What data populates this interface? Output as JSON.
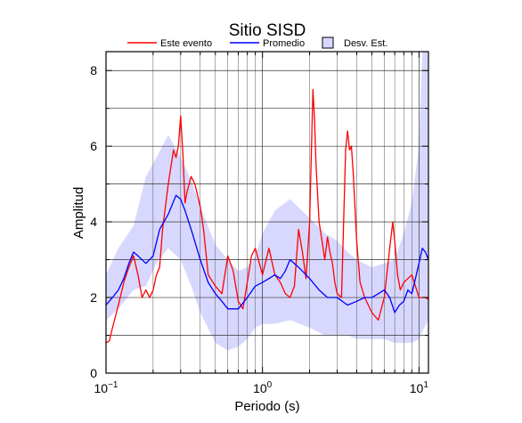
{
  "chart_data": {
    "type": "line",
    "title": "Sitio SISD",
    "xlabel": "Periodo (s)",
    "ylabel": "Amplitud",
    "xscale": "log",
    "xlim": [
      0.1,
      11.5
    ],
    "ylim": [
      0,
      8.5
    ],
    "x_ticks": [
      {
        "value": 0.1,
        "base": "10",
        "exp": "−1"
      },
      {
        "value": 1,
        "base": "10",
        "exp": "0"
      },
      {
        "value": 10,
        "base": "10",
        "exp": "1"
      }
    ],
    "y_ticks": [
      "0",
      "2",
      "4",
      "6",
      "8"
    ],
    "grid": true,
    "legend_position": "top",
    "legend": [
      {
        "label": "Este evento",
        "color": "#ff0000",
        "kind": "line"
      },
      {
        "label": "Promedio",
        "color": "#0000ff",
        "kind": "line"
      },
      {
        "label": "Desv. Est.",
        "color": "#d8d8ff",
        "kind": "box"
      }
    ],
    "band": {
      "name": "Desv. Est.",
      "color": "#d8d8ff",
      "x": [
        0.1,
        0.12,
        0.15,
        0.18,
        0.21,
        0.25,
        0.3,
        0.35,
        0.4,
        0.5,
        0.6,
        0.7,
        0.8,
        0.9,
        1.0,
        1.2,
        1.5,
        2.0,
        2.5,
        3.0,
        3.5,
        4.0,
        5.0,
        6.0,
        7.0,
        8.0,
        9.0,
        10.0,
        10.5,
        11.5
      ],
      "upper": [
        2.6,
        3.3,
        3.9,
        5.2,
        5.7,
        6.3,
        5.7,
        5.1,
        4.4,
        3.4,
        3.0,
        2.7,
        2.8,
        3.1,
        3.7,
        4.3,
        4.6,
        4.1,
        3.7,
        3.5,
        3.2,
        3.0,
        2.8,
        2.9,
        3.0,
        3.7,
        4.5,
        6.0,
        8.5,
        8.5
      ],
      "lower": [
        1.4,
        1.7,
        2.2,
        2.3,
        2.9,
        3.3,
        3.0,
        2.3,
        1.6,
        0.8,
        0.6,
        0.7,
        0.9,
        1.2,
        1.3,
        1.3,
        1.4,
        1.2,
        1.0,
        1.0,
        1.0,
        0.9,
        0.9,
        0.9,
        0.8,
        0.8,
        0.8,
        0.9,
        1.1,
        1.4
      ]
    },
    "series": [
      {
        "name": "Este evento",
        "color": "#ff0000",
        "x": [
          0.1,
          0.105,
          0.11,
          0.12,
          0.13,
          0.14,
          0.15,
          0.16,
          0.17,
          0.18,
          0.19,
          0.2,
          0.21,
          0.22,
          0.23,
          0.25,
          0.27,
          0.28,
          0.29,
          0.3,
          0.31,
          0.32,
          0.33,
          0.35,
          0.37,
          0.4,
          0.42,
          0.45,
          0.5,
          0.55,
          0.6,
          0.65,
          0.7,
          0.75,
          0.8,
          0.85,
          0.9,
          1.0,
          1.1,
          1.2,
          1.3,
          1.4,
          1.5,
          1.6,
          1.7,
          1.8,
          1.9,
          2.0,
          2.1,
          2.15,
          2.2,
          2.3,
          2.4,
          2.5,
          2.6,
          2.7,
          2.8,
          2.9,
          3.0,
          3.2,
          3.4,
          3.5,
          3.6,
          3.7,
          3.8,
          4.0,
          4.2,
          4.5,
          5.0,
          5.5,
          6.0,
          6.5,
          6.8,
          7.0,
          7.3,
          7.6,
          8.0,
          8.5,
          9.0,
          9.5,
          10.0,
          10.5,
          11.0,
          11.5
        ],
        "y": [
          0.8,
          0.85,
          1.2,
          1.8,
          2.4,
          2.8,
          3.1,
          2.6,
          2.0,
          2.2,
          2.0,
          2.2,
          2.6,
          2.8,
          3.8,
          5.0,
          5.9,
          5.7,
          6.0,
          6.8,
          5.8,
          4.5,
          4.8,
          5.2,
          5.0,
          4.4,
          3.8,
          2.6,
          2.3,
          2.1,
          3.1,
          2.7,
          1.9,
          1.7,
          2.4,
          3.1,
          3.3,
          2.6,
          3.3,
          2.6,
          2.4,
          2.1,
          2.0,
          2.3,
          3.8,
          3.2,
          2.5,
          4.0,
          7.5,
          6.7,
          5.5,
          4.0,
          3.5,
          3.0,
          3.6,
          3.2,
          2.9,
          2.4,
          2.1,
          2.0,
          5.9,
          6.4,
          5.9,
          6.0,
          5.3,
          3.5,
          2.4,
          2.0,
          1.6,
          1.4,
          2.0,
          3.3,
          4.0,
          3.5,
          2.6,
          2.2,
          2.4,
          2.5,
          2.6,
          2.3,
          2.0,
          2.0,
          2.0,
          1.95
        ]
      },
      {
        "name": "Promedio",
        "color": "#0000ff",
        "x": [
          0.1,
          0.11,
          0.12,
          0.13,
          0.14,
          0.15,
          0.16,
          0.18,
          0.2,
          0.22,
          0.25,
          0.28,
          0.3,
          0.32,
          0.35,
          0.4,
          0.45,
          0.5,
          0.55,
          0.6,
          0.7,
          0.8,
          0.9,
          1.0,
          1.1,
          1.2,
          1.3,
          1.4,
          1.5,
          1.7,
          2.0,
          2.3,
          2.6,
          3.0,
          3.5,
          4.0,
          4.5,
          5.0,
          5.5,
          6.0,
          6.5,
          7.0,
          7.5,
          8.0,
          8.5,
          9.0,
          9.5,
          10.0,
          10.5,
          11.0,
          11.5
        ],
        "y": [
          1.8,
          2.0,
          2.2,
          2.5,
          2.9,
          3.2,
          3.1,
          2.9,
          3.1,
          3.8,
          4.2,
          4.7,
          4.6,
          4.3,
          3.8,
          3.0,
          2.4,
          2.1,
          1.9,
          1.7,
          1.7,
          2.0,
          2.3,
          2.4,
          2.5,
          2.6,
          2.5,
          2.7,
          3.0,
          2.8,
          2.5,
          2.2,
          2.0,
          2.0,
          1.8,
          1.9,
          2.0,
          2.0,
          2.1,
          2.2,
          2.0,
          1.6,
          1.8,
          1.9,
          2.2,
          2.1,
          2.5,
          2.9,
          3.3,
          3.2,
          3.0
        ]
      }
    ]
  }
}
